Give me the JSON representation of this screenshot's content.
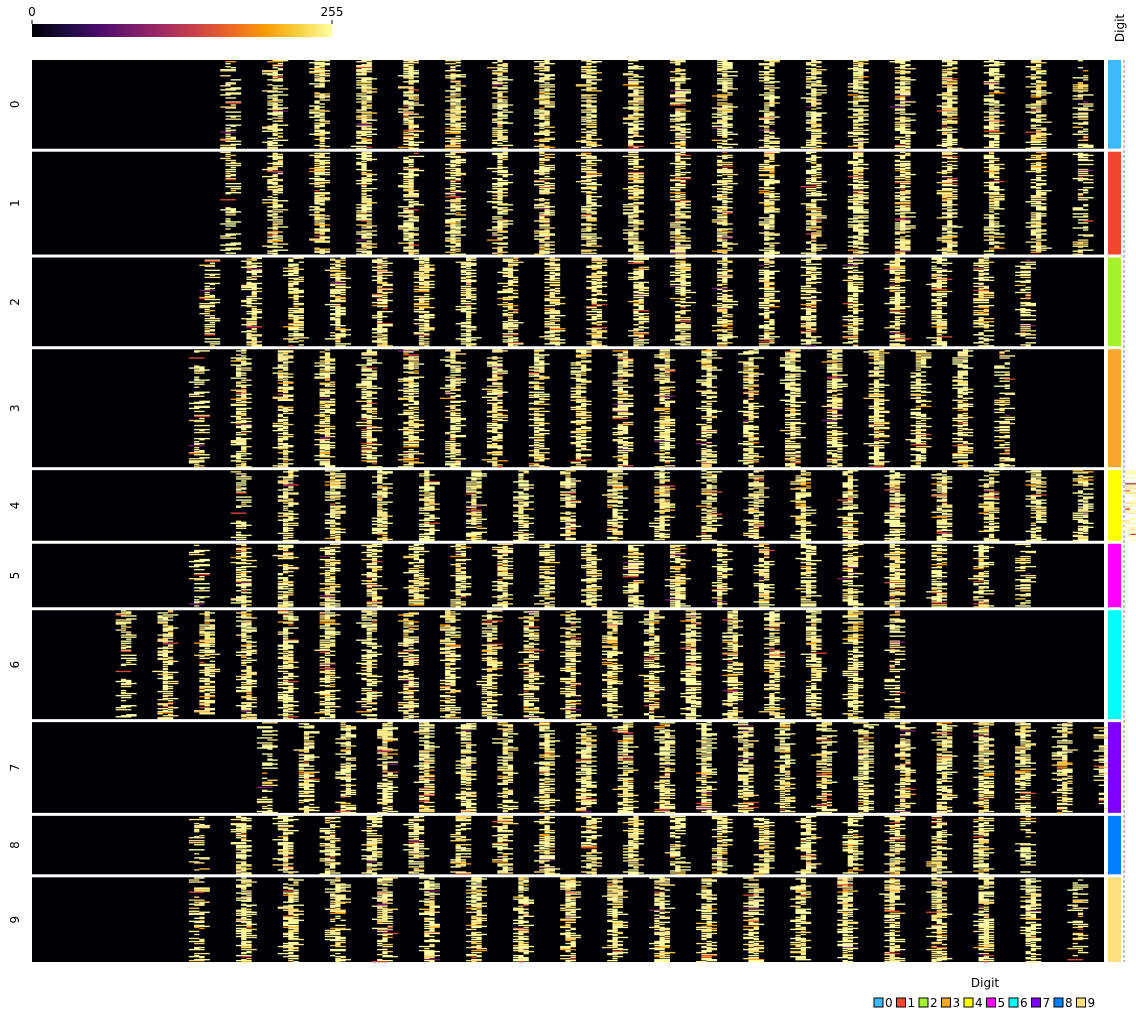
{
  "chart_data": {
    "type": "heatmap",
    "colorbar": {
      "min_label": "0",
      "max_label": "255",
      "min": 0,
      "max": 255,
      "colormap": "inferno",
      "stops": [
        "#000004",
        "#1b0c41",
        "#4a0c6b",
        "#781c6d",
        "#a52c60",
        "#cf4446",
        "#ed6925",
        "#fb9b06",
        "#f7d13d",
        "#fcffa4"
      ]
    },
    "annotation_title": "Digit",
    "legend": {
      "title": "Digit",
      "position": "bottom-right",
      "entries": [
        {
          "label": "0",
          "color": "#3fb8ff"
        },
        {
          "label": "1",
          "color": "#f0482c"
        },
        {
          "label": "2",
          "color": "#a4f22b"
        },
        {
          "label": "3",
          "color": "#f6a52d"
        },
        {
          "label": "4",
          "color": "#ffff00"
        },
        {
          "label": "5",
          "color": "#ff00ff"
        },
        {
          "label": "6",
          "color": "#00ffff"
        },
        {
          "label": "7",
          "color": "#8000ff"
        },
        {
          "label": "8",
          "color": "#0080ff"
        },
        {
          "label": "9",
          "color": "#ffdf80"
        }
      ]
    },
    "groups": [
      {
        "label": "0",
        "rows": 88,
        "color": "#3fb8ff",
        "stripe_start_col": 38,
        "stripe_end_col": 201,
        "stripe_count": 20
      },
      {
        "label": "1",
        "rows": 102,
        "color": "#f0482c",
        "stripe_start_col": 38,
        "stripe_end_col": 201,
        "stripe_count": 20
      },
      {
        "label": "2",
        "rows": 88,
        "color": "#a4f22b",
        "stripe_start_col": 34,
        "stripe_end_col": 190,
        "stripe_count": 20
      },
      {
        "label": "3",
        "rows": 117,
        "color": "#f6a52d",
        "stripe_start_col": 32,
        "stripe_end_col": 186,
        "stripe_count": 20
      },
      {
        "label": "4",
        "rows": 70,
        "color": "#ffff00",
        "stripe_start_col": 40,
        "stripe_end_col": 210,
        "stripe_count": 20
      },
      {
        "label": "5",
        "rows": 63,
        "color": "#ff00ff",
        "stripe_start_col": 32,
        "stripe_end_col": 190,
        "stripe_count": 20
      },
      {
        "label": "6",
        "rows": 108,
        "color": "#00ffff",
        "stripe_start_col": 18,
        "stripe_end_col": 165,
        "stripe_count": 20
      },
      {
        "label": "7",
        "rows": 90,
        "color": "#8000ff",
        "stripe_start_col": 45,
        "stripe_end_col": 205,
        "stripe_count": 22
      },
      {
        "label": "8",
        "rows": 58,
        "color": "#0080ff",
        "stripe_start_col": 32,
        "stripe_end_col": 190,
        "stripe_count": 20
      },
      {
        "label": "9",
        "rows": 84,
        "color": "#ffdf80",
        "stripe_start_col": 32,
        "stripe_end_col": 200,
        "stripe_count": 20
      }
    ],
    "columns": 205,
    "grid": false
  }
}
